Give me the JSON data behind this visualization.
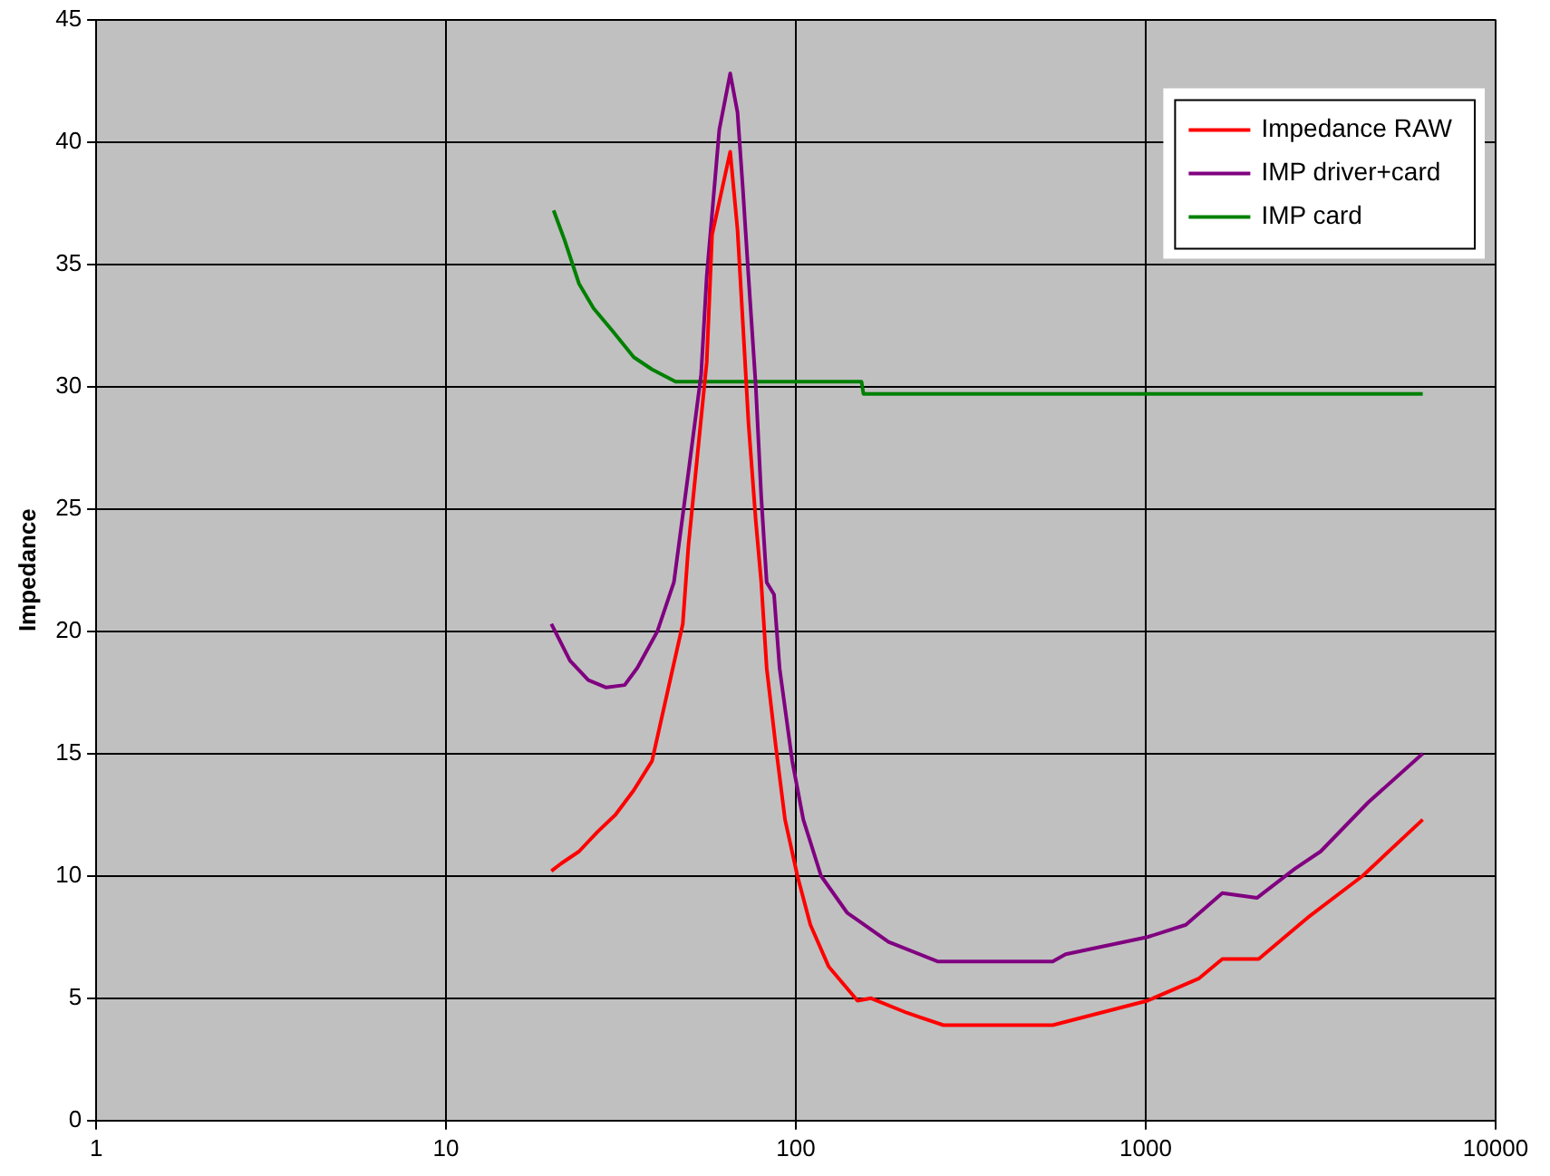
{
  "chart_data": {
    "type": "line",
    "ylabel": "Impedance",
    "log": "x",
    "xlim": [
      1,
      10000
    ],
    "xticks": [
      1,
      10,
      100,
      1000,
      10000
    ],
    "ylim": [
      0,
      45
    ],
    "yticks": [
      0,
      5,
      10,
      15,
      20,
      25,
      30,
      35,
      40,
      45
    ],
    "grid": true,
    "legend": "top right",
    "marker": "none",
    "line_style": "solid",
    "series": [
      {
        "name": "Impedance RAW",
        "color": "#ff0000",
        "x": [
          20,
          21.3,
          24,
          27.1,
          30.5,
          34.4,
          38.8,
          43.7,
          47.5,
          49.3,
          55.6,
          57.6,
          64.9,
          68.1,
          70.6,
          73.2,
          76.8,
          79.6,
          82.5,
          87.6,
          93.1,
          101,
          110,
          124,
          150,
          164,
          208,
          264,
          542,
          1012,
          1416,
          1655,
          2103,
          2907,
          4167,
          6190
        ],
        "values": [
          10.2,
          10.5,
          11,
          11.8,
          12.5,
          13.5,
          14.7,
          18,
          20.3,
          23.5,
          31,
          36.2,
          39.6,
          36.4,
          32.5,
          28.5,
          24.5,
          22,
          18.5,
          15.3,
          12.3,
          10,
          8,
          6.3,
          4.9,
          5,
          4.4,
          3.9,
          3.9,
          4.9,
          5.8,
          6.6,
          6.6,
          8.3,
          10,
          12.3
        ]
      },
      {
        "name": "IMP driver+card",
        "color": "#800080",
        "x": [
          20,
          22.6,
          25.5,
          28.7,
          32.4,
          35.2,
          40.2,
          44.8,
          49.3,
          53.6,
          55.6,
          60.4,
          64.9,
          68.1,
          70.6,
          73.2,
          76.8,
          79.6,
          82.5,
          86.6,
          89.8,
          97.6,
          105,
          118,
          140,
          184,
          255,
          542,
          590,
          1012,
          1302,
          1655,
          2078,
          2673,
          3162,
          4320,
          6190
        ],
        "values": [
          20.3,
          18.8,
          18,
          17.7,
          17.8,
          18.5,
          20,
          22,
          26.5,
          30.5,
          34.5,
          40.5,
          42.8,
          41.2,
          38,
          34.5,
          30,
          25.5,
          22,
          21.5,
          18.5,
          14.7,
          12.3,
          10,
          8.5,
          7.3,
          6.5,
          6.5,
          6.8,
          7.5,
          8,
          9.3,
          9.1,
          10.3,
          11,
          13,
          15
        ]
      },
      {
        "name": "IMP card",
        "color": "#008000",
        "x": [
          20.3,
          21.8,
          24,
          26.4,
          29.8,
          34.4,
          38.8,
          45.3,
          154,
          156,
          6190
        ],
        "values": [
          37.2,
          36,
          34.2,
          33.2,
          32.3,
          31.2,
          30.7,
          30.2,
          30.2,
          29.7,
          29.7
        ]
      }
    ]
  }
}
